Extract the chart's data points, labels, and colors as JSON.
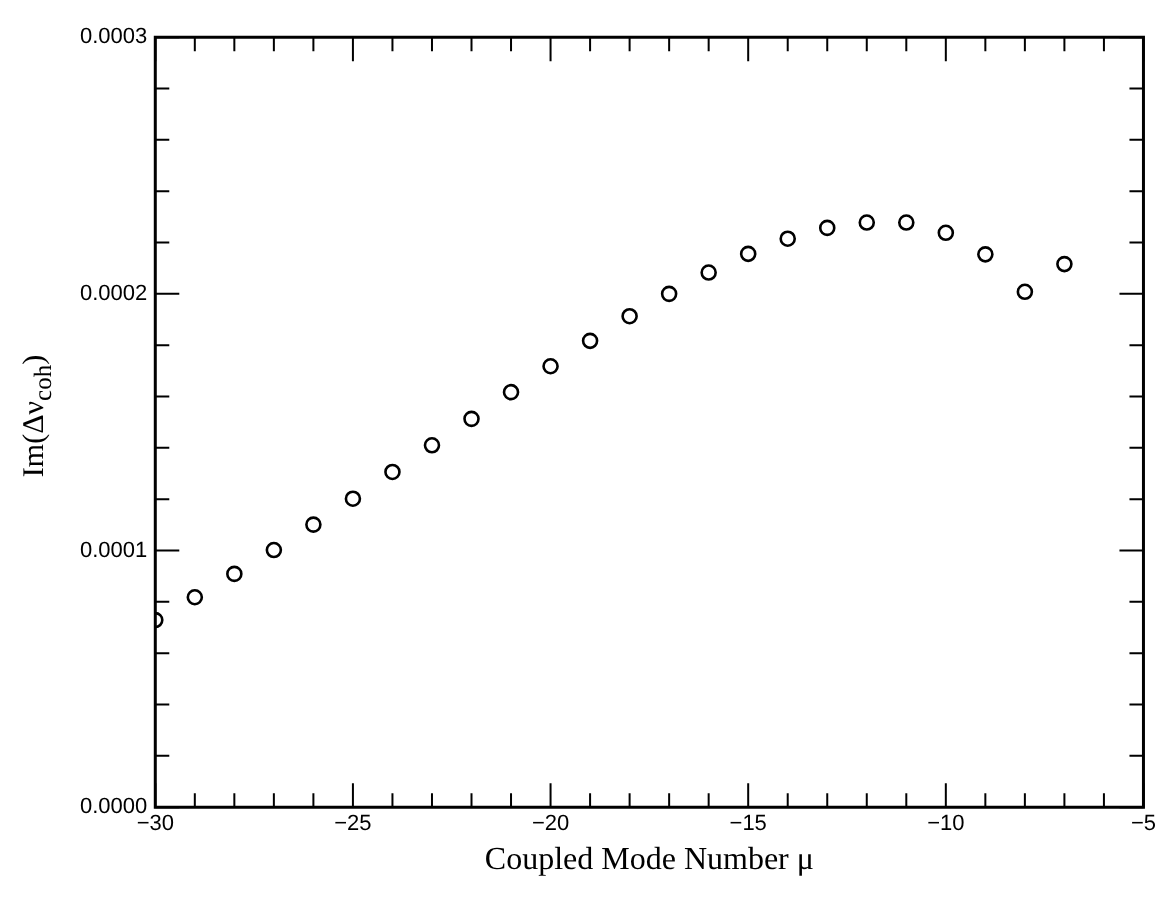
{
  "chart_data": {
    "type": "scatter",
    "xlabel": "Coupled Mode Number μ",
    "ylabel": "Im(Δν$_{coh}$)",
    "x": [
      -30,
      -29,
      -28,
      -27,
      -26,
      -25,
      -24,
      -23,
      -22,
      -21,
      -20,
      -19,
      -18,
      -17,
      -16,
      -15,
      -14,
      -13,
      -12,
      -11,
      -10,
      -9,
      -8,
      -7
    ],
    "series": [
      {
        "color": "#000000",
        "values": [
          7.29e-05,
          8.18e-05,
          9.09e-05,
          0.0001002,
          0.0001101,
          0.0001202,
          0.0001306,
          0.000141,
          0.0001513,
          0.0001617,
          0.0001718,
          0.0001817,
          0.0001913,
          0.0002,
          0.0002083,
          0.0002156,
          0.0002215,
          0.0002257,
          0.0002278,
          0.0002278,
          0.0002238,
          0.0002154,
          0.0002008,
          0.0002116
        ]
      }
    ],
    "xlim": [
      -30,
      -5
    ],
    "xticks": [
      {
        "value": -30,
        "label": "−30"
      },
      {
        "value": -29,
        "label": null
      },
      {
        "value": -28,
        "label": null
      },
      {
        "value": -27,
        "label": null
      },
      {
        "value": -26,
        "label": null
      },
      {
        "value": -25,
        "label": "−25"
      },
      {
        "value": -24,
        "label": null
      },
      {
        "value": -23,
        "label": null
      },
      {
        "value": -22,
        "label": null
      },
      {
        "value": -21,
        "label": null
      },
      {
        "value": -20,
        "label": "−20"
      },
      {
        "value": -19,
        "label": null
      },
      {
        "value": -18,
        "label": null
      },
      {
        "value": -17,
        "label": null
      },
      {
        "value": -16,
        "label": null
      },
      {
        "value": -15,
        "label": "−15"
      },
      {
        "value": -14,
        "label": null
      },
      {
        "value": -13,
        "label": null
      },
      {
        "value": -12,
        "label": null
      },
      {
        "value": -11,
        "label": null
      },
      {
        "value": -10,
        "label": "−10"
      },
      {
        "value": -9,
        "label": null
      },
      {
        "value": -8,
        "label": null
      },
      {
        "value": -7,
        "label": null
      },
      {
        "value": -6,
        "label": null
      },
      {
        "value": -5,
        "label": "−5"
      }
    ],
    "ylim": [
      0,
      0.0003
    ],
    "yticks": [
      {
        "value": 0,
        "label": "0.0000"
      },
      {
        "value": 2e-05,
        "label": null
      },
      {
        "value": 4e-05,
        "label": null
      },
      {
        "value": 6e-05,
        "label": null
      },
      {
        "value": 8e-05,
        "label": null
      },
      {
        "value": 0.0001,
        "label": "0.0001"
      },
      {
        "value": 0.00012,
        "label": null
      },
      {
        "value": 0.00014,
        "label": null
      },
      {
        "value": 0.00016,
        "label": null
      },
      {
        "value": 0.00018,
        "label": null
      },
      {
        "value": 0.0002,
        "label": "0.0002"
      },
      {
        "value": 0.00022,
        "label": null
      },
      {
        "value": 0.00024,
        "label": null
      },
      {
        "value": 0.00026,
        "label": null
      },
      {
        "value": 0.00028,
        "label": null
      },
      {
        "value": 0.0003,
        "label": "0.0003"
      }
    ],
    "marker": "circle",
    "grid": false,
    "legend": false
  }
}
